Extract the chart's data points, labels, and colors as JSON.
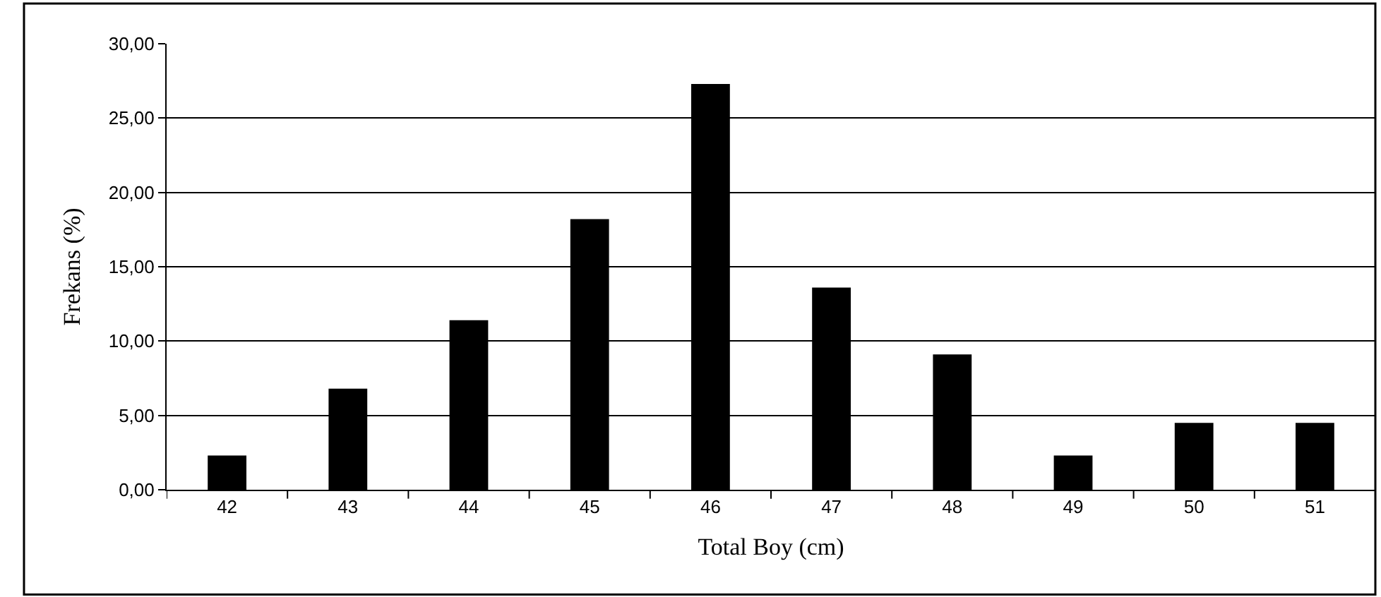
{
  "chart_data": {
    "type": "bar",
    "xlabel": "Total Boy (cm)",
    "ylabel": "Frekans (%)",
    "categories": [
      "42",
      "43",
      "44",
      "45",
      "46",
      "47",
      "48",
      "49",
      "50",
      "51"
    ],
    "values": [
      2.3,
      6.8,
      11.4,
      18.2,
      27.3,
      13.6,
      9.1,
      2.3,
      4.5,
      4.5
    ],
    "color": "#000000",
    "ylim": [
      0,
      30
    ],
    "yticks": [
      {
        "value": 0,
        "label": "0,00"
      },
      {
        "value": 5,
        "label": "5,00"
      },
      {
        "value": 10,
        "label": "10,00"
      },
      {
        "value": 15,
        "label": "15,00"
      },
      {
        "value": 20,
        "label": "20,00"
      },
      {
        "value": 25,
        "label": "25,00"
      },
      {
        "value": 30,
        "label": "30,00"
      }
    ],
    "grid": "y",
    "legend": false
  }
}
